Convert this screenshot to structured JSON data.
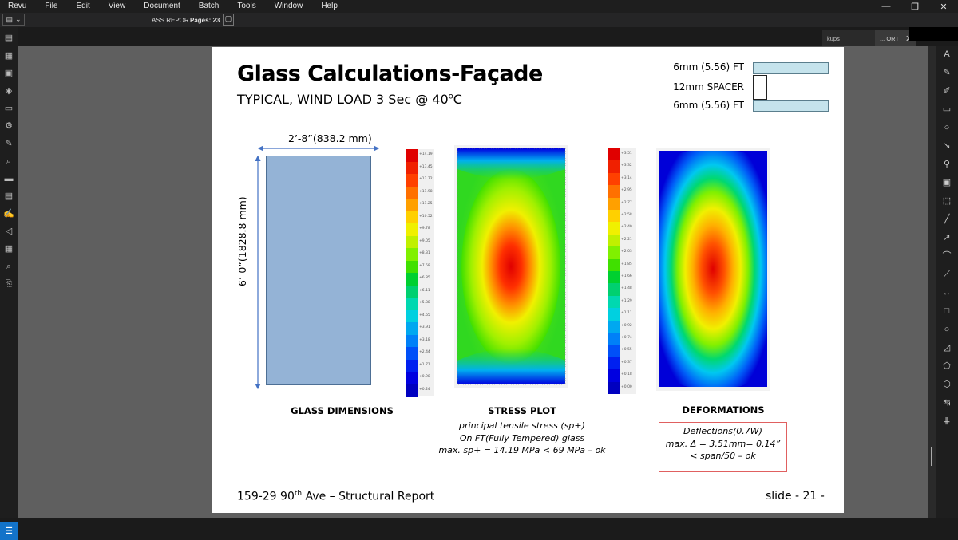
{
  "menubar": {
    "items": [
      "Revu",
      "File",
      "Edit",
      "View",
      "Document",
      "Batch",
      "Tools",
      "Window",
      "Help"
    ]
  },
  "toolbar": {
    "doc_title": "ASS REPORT",
    "pages_label": "Pages: 23"
  },
  "tabs": [
    {
      "label": "kups"
    },
    {
      "label": "... ORT"
    }
  ],
  "slide": {
    "title": "Glass Calculations-Façade",
    "subtitle_main": "TYPICAL, WIND LOAD 3 Sec @ 40",
    "subtitle_sup": "o",
    "subtitle_end": "C",
    "layers": {
      "top": "6mm (5.56) FT",
      "middle": "12mm SPACER",
      "bottom": "6mm (5.56) FT"
    },
    "dimensions": {
      "width": "2’-8”(838.2 mm)",
      "height": "6’-0”(1828.8 mm)"
    },
    "captions": {
      "glass": "GLASS DIMENSIONS",
      "stress": "STRESS PLOT",
      "deform": "DEFORMATIONS"
    },
    "stress_notes": [
      "principal tensile stress (sp+)",
      "On FT(Fully Tempered) glass",
      "max. sp+ = 14.19 MPa < 69 MPa – ok"
    ],
    "deform_notes": [
      "Deflections(0.7W)",
      "max. Δ = 3.51mm= 0.14”",
      "< span/50 – ok"
    ],
    "footer_left_pre": "159-29 90",
    "footer_left_sup": "th",
    "footer_left_post": " Ave – Structural Report",
    "footer_right": "slide - 21 -"
  },
  "stress_legend": [
    "+14.19",
    "+13.45",
    "+12.72",
    "+11.98",
    "+11.25",
    "+10.52",
    "+9.78",
    "+9.05",
    "+8.31",
    "+7.58",
    "+6.85",
    "+6.11",
    "+5.38",
    "+4.65",
    "+3.91",
    "+3.18",
    "+2.44",
    "+1.71",
    "+0.98",
    "+0.24"
  ],
  "deform_legend": [
    "+3.51",
    "+3.32",
    "+3.14",
    "+2.95",
    "+2.77",
    "+2.58",
    "+2.40",
    "+2.21",
    "+2.03",
    "+1.85",
    "+1.66",
    "+1.48",
    "+1.29",
    "+1.11",
    "+0.92",
    "+0.74",
    "+0.55",
    "+0.37",
    "+0.18",
    "+0.00"
  ],
  "legend_colors": [
    "#e00000",
    "#f02000",
    "#ff4000",
    "#ff7000",
    "#ffa000",
    "#ffd000",
    "#f0f000",
    "#c0f000",
    "#80f000",
    "#40e000",
    "#00d030",
    "#00d070",
    "#00d8b0",
    "#00d0e0",
    "#00a8f0",
    "#0080f8",
    "#0050f8",
    "#0020f0",
    "#0000e0",
    "#0000c0"
  ],
  "icons": {
    "left": [
      "thumbnails-icon",
      "pages-icon",
      "bookmarks-icon",
      "layers-icon",
      "toolchest-icon",
      "properties-icon",
      "markups-icon",
      "search-icon",
      "measure-icon",
      "forms-icon",
      "signatures-icon",
      "sets-icon",
      "files-icon",
      "find-icon",
      "spaces-icon"
    ],
    "right": [
      "text-box-icon",
      "highlighter-icon",
      "pen-icon",
      "typewriter-icon",
      "cloud-icon",
      "callout-icon",
      "stamp-icon",
      "image-icon",
      "snapshot-icon",
      "line-icon",
      "arrow-icon",
      "arc-icon",
      "polyline-icon",
      "dimension-icon",
      "rectangle-icon",
      "ellipse-icon",
      "polygon-icon",
      "area-icon",
      "volume-icon",
      "length-icon",
      "count-icon"
    ]
  }
}
